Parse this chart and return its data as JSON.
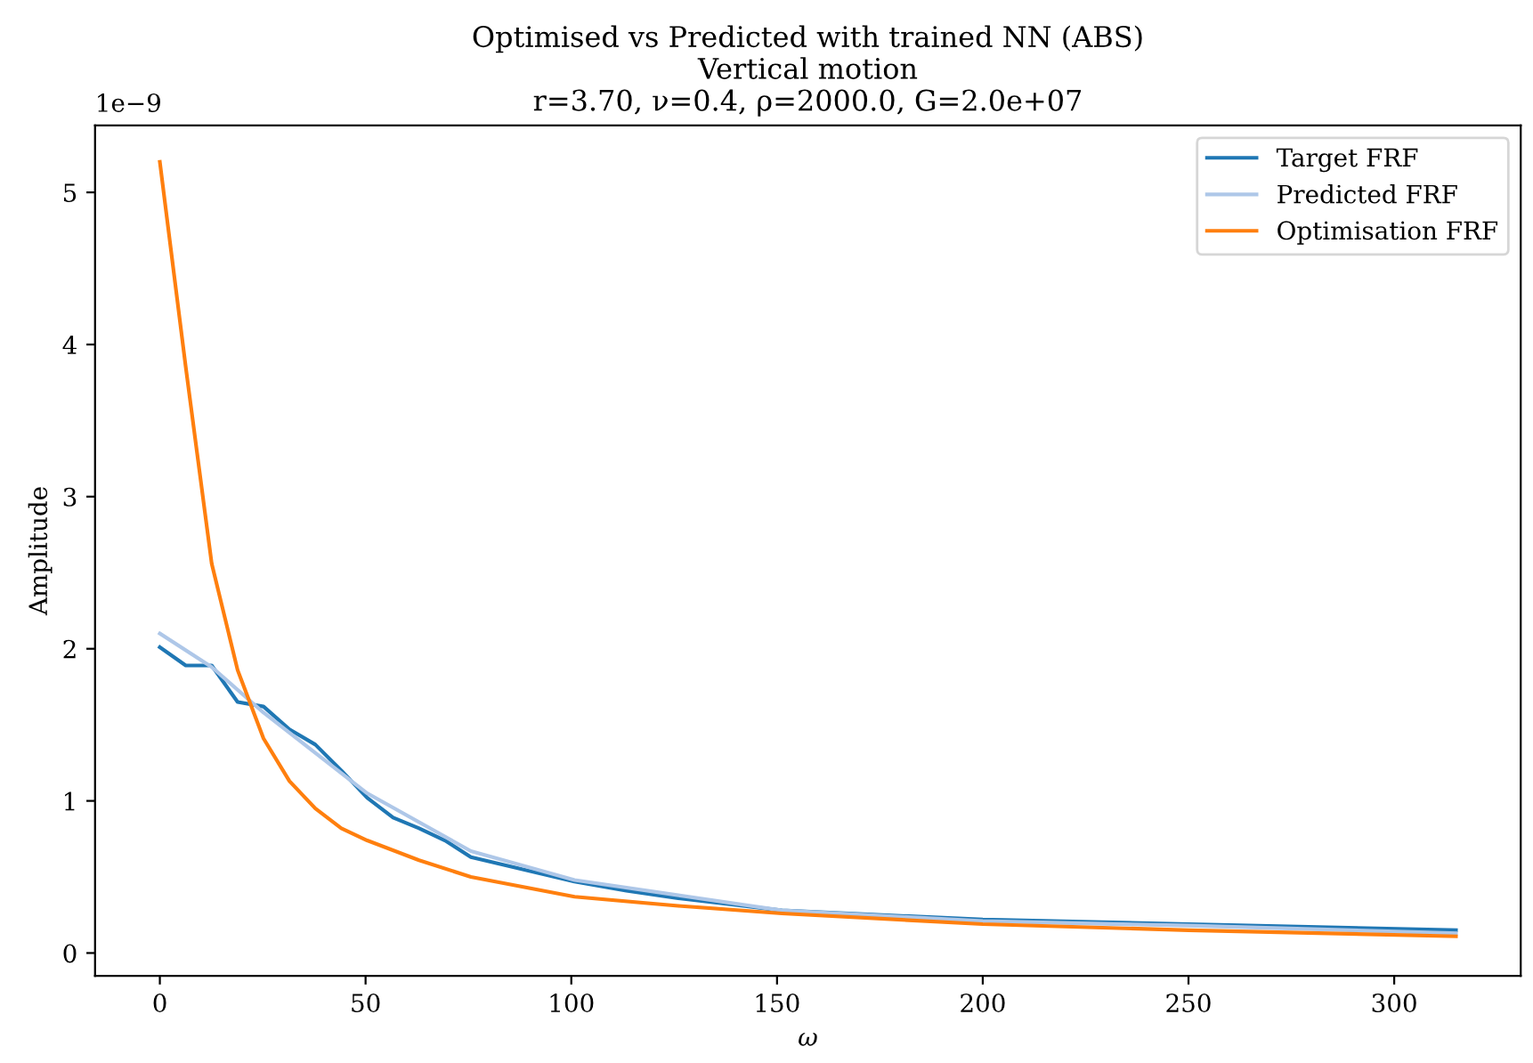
{
  "chart_data": {
    "type": "line",
    "title": "Optimised vs Predicted with trained NN (ABS)\nVertical motion\nr=3.70, ν=0.4, ρ=2000.0, G=2.0e+07",
    "xlabel": "ω",
    "ylabel": "Amplitude",
    "annotations": [
      "1e−9"
    ],
    "series": [
      {
        "name": "Target FRF",
        "color": "#1f77b4",
        "x": [
          0,
          6.3,
          12.6,
          18.9,
          25.2,
          31.5,
          37.8,
          44.1,
          50.4,
          56.7,
          63,
          69.3,
          75.6,
          88.2,
          100.8,
          113.4,
          126,
          138.6,
          151.2,
          200,
          250,
          315
        ],
        "values": [
          2.01,
          1.89,
          1.89,
          1.65,
          1.62,
          1.47,
          1.37,
          1.2,
          1.02,
          0.89,
          0.82,
          0.74,
          0.63,
          0.55,
          0.47,
          0.41,
          0.36,
          0.32,
          0.28,
          0.22,
          0.19,
          0.15
        ]
      },
      {
        "name": "Predicted FRF",
        "color": "#aec7e8",
        "x": [
          0,
          12.6,
          25.2,
          50.4,
          75.6,
          100.8,
          151.2,
          200,
          250,
          315
        ],
        "values": [
          2.1,
          1.88,
          1.58,
          1.05,
          0.67,
          0.48,
          0.28,
          0.21,
          0.18,
          0.13
        ]
      },
      {
        "name": "Optimisation FRF",
        "color": "#ff7f0e",
        "x": [
          0,
          6.3,
          12.6,
          18.9,
          25.2,
          31.5,
          37.8,
          44.1,
          50.4,
          63,
          75.6,
          100.8,
          126,
          151.2,
          200,
          250,
          315
        ],
        "values": [
          5.2,
          3.85,
          2.56,
          1.86,
          1.41,
          1.13,
          0.95,
          0.82,
          0.74,
          0.61,
          0.5,
          0.37,
          0.31,
          0.26,
          0.19,
          0.15,
          0.11
        ]
      }
    ],
    "xlim": [
      -15.75,
      330.75
    ],
    "xticks": [
      0,
      50,
      100,
      150,
      200,
      250,
      300
    ],
    "ylim": [
      -0.15,
      5.44
    ],
    "yticks": [
      0,
      1,
      2,
      3,
      4,
      5
    ],
    "legend": "top right",
    "grid": false,
    "marker": "none",
    "line_style": "solid"
  }
}
